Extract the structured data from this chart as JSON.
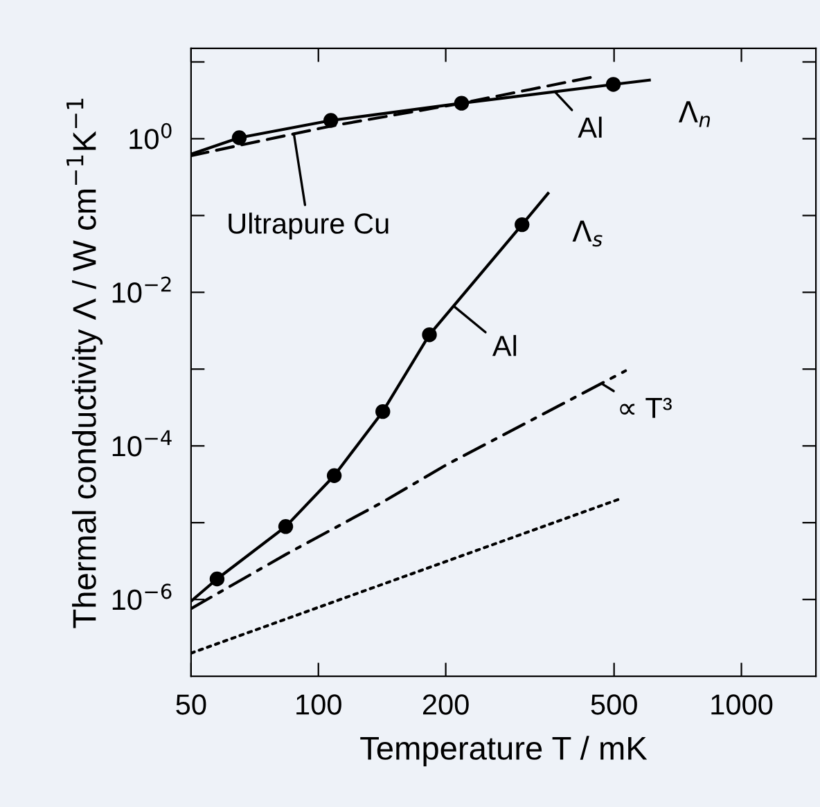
{
  "chart_data": {
    "type": "line",
    "xlabel": "Temperature T / mK",
    "ylabel": "Thermal conductivity Λ / W cm$^{−1}$K$^{−1}$",
    "log": "xy",
    "grid": false,
    "xlim": [
      50,
      1500
    ],
    "ylim": [
      1e-07,
      15
    ],
    "xticks": [
      50,
      100,
      200,
      500,
      1000
    ],
    "yticks": [
      {
        "value": 10,
        "label": null
      },
      {
        "value": 1,
        "label": "10$^{0}$"
      },
      {
        "value": 0.1,
        "label": null
      },
      {
        "value": 0.01,
        "label": "10$^{−2}$"
      },
      {
        "value": 0.001,
        "label": null
      },
      {
        "value": 0.0001,
        "label": "10$^{−4}$"
      },
      {
        "value": 1e-05,
        "label": null
      },
      {
        "value": 1e-06,
        "label": "10$^{−6}$"
      }
    ],
    "series": [
      {
        "color": "#000000",
        "line_style": "solid",
        "x": [
          50,
          65,
          107,
          218,
          498,
          606
        ],
        "values": [
          0.63,
          1.03,
          1.73,
          2.9,
          5.1,
          5.8
        ]
      },
      {
        "color": "#000000",
        "line_style": "dashed",
        "x": [
          50,
          65,
          107,
          218,
          447
        ],
        "values": [
          0.6,
          0.82,
          1.46,
          2.9,
          6.4
        ]
      },
      {
        "type": "scatter",
        "color": "#000000",
        "marker": "circle",
        "x": [
          65,
          107,
          218,
          498
        ],
        "values": [
          1.03,
          1.73,
          2.9,
          5.1
        ]
      },
      {
        "color": "#000000",
        "line_style": "solid",
        "x": [
          50,
          57.6,
          83.7,
          109,
          142,
          183,
          303,
          349
        ],
        "values": [
          9.5e-07,
          1.85e-06,
          8.9e-06,
          4.1e-05,
          0.00028,
          0.0028,
          0.076,
          0.194
        ]
      },
      {
        "type": "scatter",
        "color": "#000000",
        "marker": "circle",
        "x": [
          57.6,
          83.7,
          109,
          142,
          183,
          303
        ],
        "values": [
          1.85e-06,
          8.9e-06,
          4.1e-05,
          0.00028,
          0.0028,
          0.076
        ]
      },
      {
        "color": "#000000",
        "line_style": "dashdot",
        "x": [
          50,
          84,
          142,
          201,
          532
        ],
        "values": [
          7.6e-07,
          3.9e-06,
          1.86e-05,
          5.7e-05,
          0.00095
        ]
      },
      {
        "color": "#000000",
        "line_style": "dotted",
        "x": [
          50,
          511
        ],
        "values": [
          2e-07,
          2e-05
        ]
      }
    ],
    "annotations": [
      "Λ$_{n}$",
      {
        "text": "Al",
        "x": 362,
        "y": 4.1
      },
      {
        "text": "Ultrapure Cu",
        "x": 87.5,
        "y": 1.16
      },
      "Λ$_{s}$",
      {
        "text": "Al",
        "x": 209,
        "y": 0.0066
      },
      {
        "text": "∝ T³",
        "x": 467,
        "y": 0.00065
      }
    ]
  }
}
